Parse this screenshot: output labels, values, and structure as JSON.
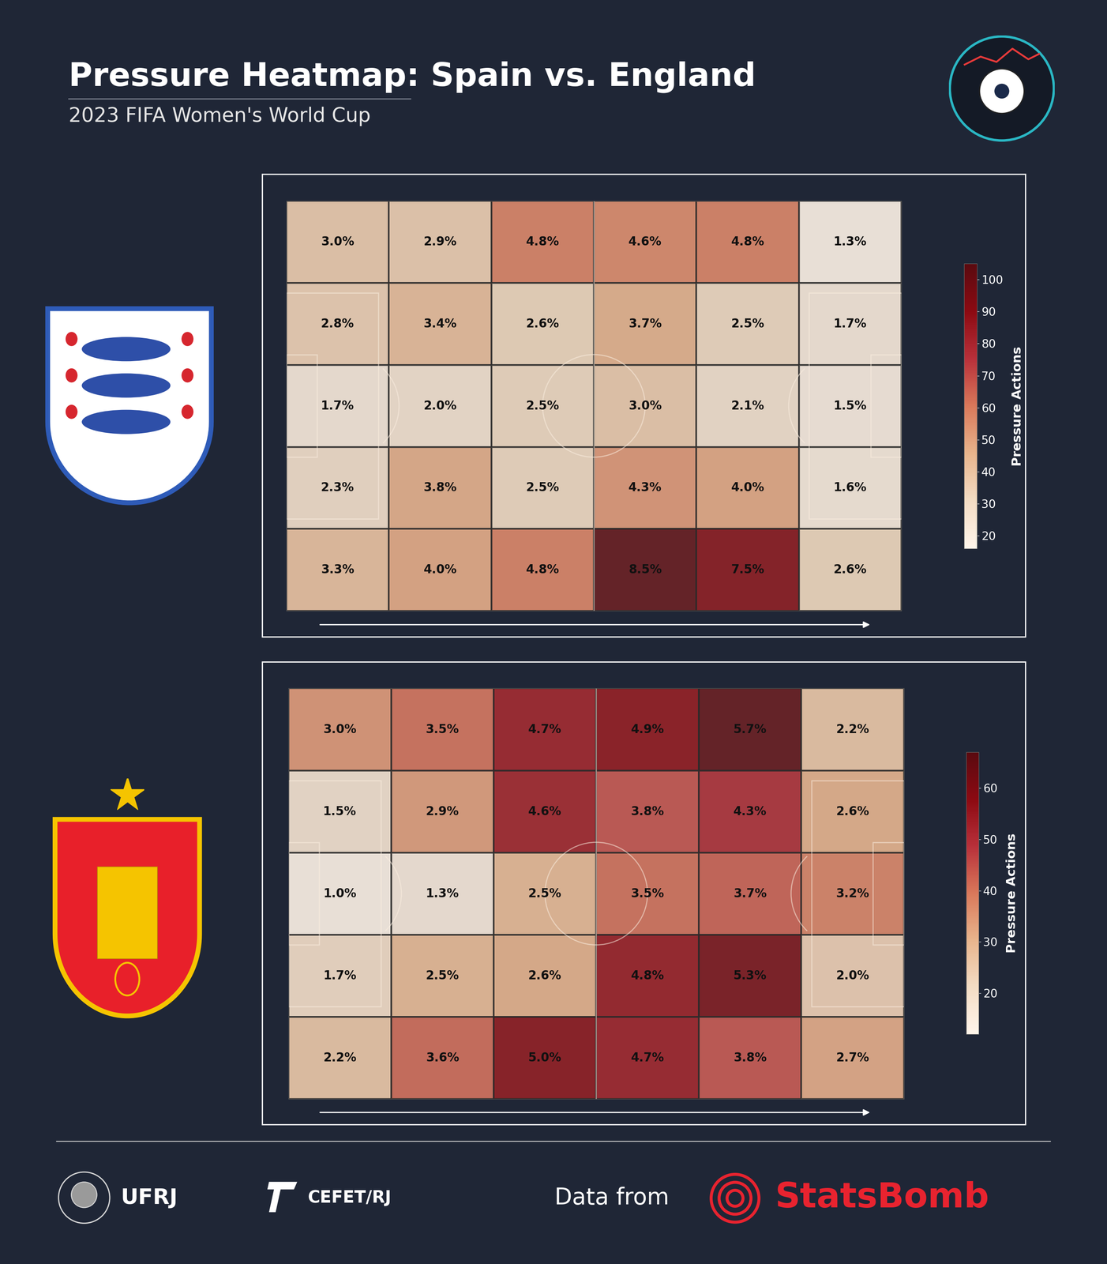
{
  "title": "Pressure Heatmap: Spain vs. England",
  "subtitle": "2023 FIFA Women's World Cup",
  "footer": {
    "logos": [
      "UFRJ",
      "CEFET/RJ"
    ],
    "source_prefix": "Data from",
    "source": "StatsBomb"
  },
  "chart_data": [
    {
      "type": "heatmap",
      "data_labels": true,
      "tick_labels": false,
      "colorbar_label": "Pressure Actions",
      "colorbar_range": [
        16,
        105
      ],
      "colorbar_ticks": [
        20,
        30,
        40,
        50,
        60,
        70,
        80,
        90,
        100
      ],
      "values": [
        [
          3.0,
          2.9,
          4.8,
          4.6,
          4.8,
          1.3
        ],
        [
          2.8,
          3.4,
          2.6,
          3.7,
          2.5,
          1.7
        ],
        [
          1.7,
          2.0,
          2.5,
          3.0,
          2.1,
          1.5
        ],
        [
          2.3,
          3.8,
          2.5,
          4.3,
          4.0,
          1.6
        ],
        [
          3.3,
          4.0,
          4.8,
          8.5,
          7.5,
          2.6
        ]
      ],
      "value_labels": [
        [
          "3.0%",
          "2.9%",
          "4.8%",
          "4.6%",
          "4.8%",
          "1.3%"
        ],
        [
          "2.8%",
          "3.4%",
          "2.6%",
          "3.7%",
          "2.5%",
          "1.7%"
        ],
        [
          "1.7%",
          "2.0%",
          "2.5%",
          "3.0%",
          "2.1%",
          "1.5%"
        ],
        [
          "2.3%",
          "3.8%",
          "2.5%",
          "4.3%",
          "4.0%",
          "1.6%"
        ],
        [
          "3.3%",
          "4.0%",
          "4.8%",
          "8.5%",
          "7.5%",
          "2.6%"
        ]
      ],
      "pressure_actions": [
        [
          37,
          36,
          59,
          57,
          59,
          16
        ],
        [
          35,
          42,
          32,
          46,
          31,
          21
        ],
        [
          21,
          25,
          31,
          37,
          26,
          19
        ],
        [
          28,
          47,
          31,
          53,
          49,
          20
        ],
        [
          41,
          49,
          59,
          105,
          93,
          32
        ]
      ]
    },
    {
      "type": "heatmap",
      "data_labels": true,
      "tick_labels": false,
      "colorbar_label": "Pressure Actions",
      "colorbar_range": [
        12,
        67
      ],
      "colorbar_ticks": [
        20,
        30,
        40,
        50,
        60
      ],
      "values": [
        [
          3.0,
          3.5,
          4.7,
          4.9,
          5.7,
          2.2
        ],
        [
          1.5,
          2.9,
          4.6,
          3.8,
          4.3,
          2.6
        ],
        [
          1.0,
          1.3,
          2.5,
          3.5,
          3.7,
          3.2
        ],
        [
          1.7,
          2.5,
          2.6,
          4.8,
          5.3,
          2.0
        ],
        [
          2.2,
          3.6,
          5.0,
          4.7,
          3.8,
          2.7
        ]
      ],
      "value_labels": [
        [
          "3.0%",
          "3.5%",
          "4.7%",
          "4.9%",
          "5.7%",
          "2.2%"
        ],
        [
          "1.5%",
          "2.9%",
          "4.6%",
          "3.8%",
          "4.3%",
          "2.6%"
        ],
        [
          "1.0%",
          "1.3%",
          "2.5%",
          "3.5%",
          "3.7%",
          "3.2%"
        ],
        [
          "1.7%",
          "2.5%",
          "2.6%",
          "4.8%",
          "5.3%",
          "2.0%"
        ],
        [
          "2.2%",
          "3.6%",
          "5.0%",
          "4.7%",
          "3.8%",
          "2.7%"
        ]
      ],
      "pressure_actions": [
        [
          35,
          41,
          55,
          58,
          67,
          26
        ],
        [
          18,
          34,
          54,
          45,
          51,
          31
        ],
        [
          12,
          15,
          29,
          41,
          43,
          38
        ],
        [
          20,
          29,
          31,
          56,
          62,
          24
        ],
        [
          26,
          42,
          59,
          55,
          45,
          32
        ]
      ]
    }
  ]
}
